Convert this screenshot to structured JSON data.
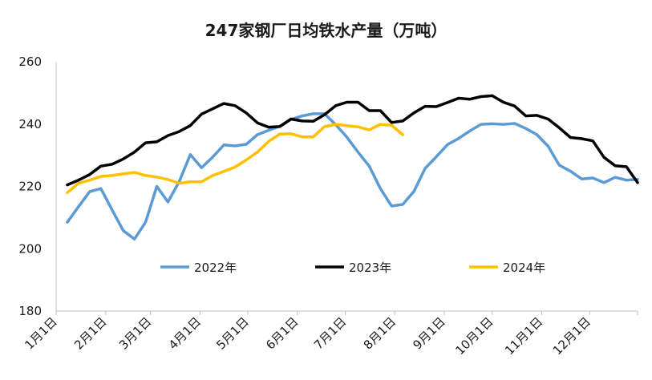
{
  "chart_data": {
    "type": "line",
    "title": "247家钢厂日均铁水产量（万吨）",
    "xlabel": "",
    "ylabel": "",
    "ylim": [
      180,
      260
    ],
    "yticks": [
      180,
      200,
      220,
      240,
      260
    ],
    "x_unit": "week_of_year",
    "x_range": [
      0,
      52
    ],
    "x_tick_labels": [
      "1月1日",
      "2月1日",
      "3月1日",
      "4月1日",
      "5月1日",
      "6月1日",
      "7月1日",
      "8月1日",
      "9月1日",
      "10月1日",
      "11月1日",
      "12月1日"
    ],
    "x_tick_positions": [
      0,
      4.43,
      8.43,
      12.86,
      17.14,
      21.57,
      25.86,
      30.29,
      34.71,
      39.0,
      43.43,
      47.71
    ],
    "grid": false,
    "legend": "inside-bottom",
    "series": [
      {
        "name": "2022年",
        "color": "#5b9bd5",
        "x": [
          1,
          2,
          3,
          4,
          5,
          6,
          7,
          8,
          9,
          10,
          11,
          12,
          13,
          14,
          15,
          16,
          17,
          18,
          19,
          20,
          21,
          22,
          23,
          24,
          25,
          26,
          27,
          28,
          29,
          30,
          31,
          32,
          33,
          34,
          35,
          36,
          37,
          38,
          39,
          40,
          41,
          42,
          43,
          44,
          45,
          46,
          47,
          48,
          49,
          50,
          51,
          52
        ],
        "values": [
          208.5,
          213.5,
          218.3,
          219.3,
          212.5,
          205.8,
          203.1,
          208.5,
          220.0,
          215.0,
          221.5,
          230.2,
          226.0,
          229.4,
          233.3,
          233.0,
          233.5,
          236.6,
          238.0,
          239.3,
          241.5,
          242.6,
          243.3,
          243.3,
          239.8,
          235.8,
          231.0,
          226.5,
          219.3,
          213.7,
          214.2,
          218.4,
          225.8,
          229.5,
          233.4,
          235.4,
          237.8,
          239.9,
          240.1,
          239.9,
          240.2,
          238.6,
          236.6,
          232.9,
          226.8,
          224.9,
          222.4,
          222.7,
          221.2,
          222.9,
          222.0,
          222.3
        ]
      },
      {
        "name": "2023年",
        "color": "#000000",
        "x": [
          1,
          2,
          3,
          4,
          5,
          6,
          7,
          8,
          9,
          10,
          11,
          12,
          13,
          14,
          15,
          16,
          17,
          18,
          19,
          20,
          21,
          22,
          23,
          24,
          25,
          26,
          27,
          28,
          29,
          30,
          31,
          32,
          33,
          34,
          35,
          36,
          37,
          38,
          39,
          40,
          41,
          42,
          43,
          44,
          45,
          46,
          47,
          48,
          49,
          50,
          51,
          52
        ],
        "values": [
          220.5,
          222.0,
          223.8,
          226.5,
          227.1,
          228.8,
          231.0,
          234.0,
          234.3,
          236.3,
          237.6,
          239.5,
          243.2,
          244.9,
          246.6,
          245.9,
          243.6,
          240.4,
          239.0,
          239.2,
          241.6,
          241.0,
          240.9,
          243.0,
          245.9,
          247.0,
          247.0,
          244.3,
          244.3,
          240.5,
          241.0,
          243.6,
          245.7,
          245.6,
          246.9,
          248.3,
          248.0,
          248.8,
          249.1,
          247.0,
          245.8,
          242.6,
          242.8,
          241.6,
          238.8,
          235.7,
          235.3,
          234.6,
          229.3,
          226.6,
          226.3,
          221.2
        ]
      },
      {
        "name": "2024年",
        "color": "#ffc000",
        "x": [
          1,
          2,
          3,
          4,
          5,
          6,
          7,
          8,
          9,
          10,
          11,
          12,
          13,
          14,
          15,
          16,
          17,
          18,
          19,
          20,
          21,
          22,
          23,
          24,
          25,
          26,
          27,
          28,
          29,
          30,
          31
        ],
        "values": [
          218.0,
          221.0,
          222.0,
          223.2,
          223.5,
          224.0,
          224.5,
          223.5,
          223.0,
          222.2,
          221.0,
          221.5,
          221.5,
          223.5,
          224.8,
          226.2,
          228.5,
          231.0,
          234.4,
          236.8,
          236.9,
          235.9,
          235.9,
          239.2,
          239.9,
          239.5,
          239.1,
          238.1,
          239.9,
          239.6,
          236.6
        ]
      }
    ]
  }
}
